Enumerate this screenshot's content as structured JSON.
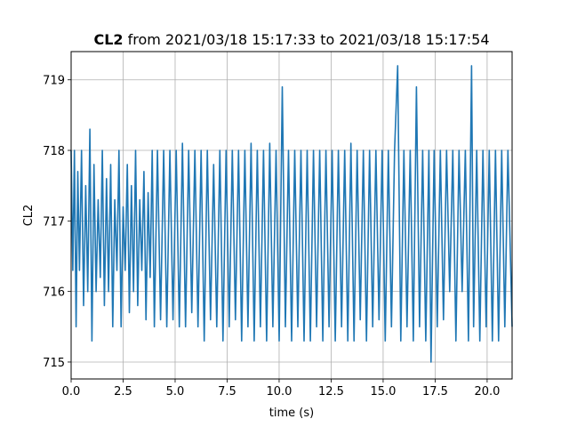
{
  "chart_data": {
    "type": "line",
    "title_bold": "CL2",
    "title_rest": " from 2021/03/18 15:17:33 to 2021/03/18 15:17:54",
    "xlabel": "time (s)",
    "ylabel": "CL2",
    "xlim": [
      0,
      21.2
    ],
    "ylim": [
      714.76,
      719.4
    ],
    "grid": true,
    "x_ticks": [
      0.0,
      2.5,
      5.0,
      7.5,
      10.0,
      12.5,
      15.0,
      17.5,
      20.0
    ],
    "x_tick_labels": [
      "0.0",
      "2.5",
      "5.0",
      "7.5",
      "10.0",
      "12.5",
      "15.0",
      "17.5",
      "20.0"
    ],
    "y_ticks": [
      715,
      716,
      717,
      718,
      719
    ],
    "y_tick_labels": [
      "715",
      "716",
      "717",
      "718",
      "719"
    ],
    "line_color": "#1f77b4",
    "series": [
      {
        "x": [
          0.0,
          0.08,
          0.16,
          0.24,
          0.32,
          0.4,
          0.5,
          0.6,
          0.7,
          0.8,
          0.9,
          1.0,
          1.1,
          1.2,
          1.3,
          1.4,
          1.5,
          1.6,
          1.7,
          1.8,
          1.9,
          2.0,
          2.1,
          2.2,
          2.3,
          2.4,
          2.5,
          2.6,
          2.7,
          2.8,
          2.9,
          3.0,
          3.1,
          3.2,
          3.3,
          3.4,
          3.5,
          3.6,
          3.7,
          3.8,
          3.9,
          4.0,
          4.15,
          4.3,
          4.45,
          4.6,
          4.75,
          4.9,
          5.05,
          5.2,
          5.35,
          5.5,
          5.65,
          5.8,
          5.95,
          6.1,
          6.25,
          6.4,
          6.55,
          6.7,
          6.85,
          7.0,
          7.15,
          7.3,
          7.45,
          7.6,
          7.75,
          7.9,
          8.05,
          8.2,
          8.35,
          8.5,
          8.65,
          8.8,
          8.95,
          9.1,
          9.25,
          9.4,
          9.55,
          9.7,
          9.85,
          10.0,
          10.15,
          10.3,
          10.45,
          10.6,
          10.75,
          10.9,
          11.05,
          11.2,
          11.35,
          11.5,
          11.65,
          11.8,
          11.95,
          12.1,
          12.25,
          12.4,
          12.55,
          12.7,
          12.85,
          13.0,
          13.15,
          13.3,
          13.45,
          13.6,
          13.75,
          13.9,
          14.05,
          14.2,
          14.35,
          14.5,
          14.65,
          14.8,
          14.95,
          15.1,
          15.25,
          15.4,
          15.55,
          15.7,
          15.85,
          16.0,
          16.15,
          16.3,
          16.45,
          16.6,
          16.75,
          16.9,
          17.05,
          17.2,
          17.3,
          17.45,
          17.6,
          17.75,
          17.9,
          18.05,
          18.2,
          18.35,
          18.5,
          18.65,
          18.8,
          18.95,
          19.1,
          19.25,
          19.35,
          19.5,
          19.65,
          19.8,
          19.95,
          20.1,
          20.25,
          20.4,
          20.55,
          20.7,
          20.85,
          21.0,
          21.2
        ],
        "y": [
          718.0,
          716.3,
          718.0,
          715.5,
          717.7,
          716.3,
          718.0,
          715.8,
          717.5,
          716.0,
          718.3,
          715.3,
          717.8,
          716.0,
          717.3,
          716.2,
          718.0,
          715.8,
          717.6,
          716.0,
          717.8,
          715.5,
          717.3,
          716.3,
          718.0,
          715.5,
          717.2,
          716.3,
          717.8,
          715.7,
          717.5,
          716.0,
          718.0,
          715.8,
          717.3,
          716.3,
          717.7,
          715.6,
          717.4,
          716.2,
          718.0,
          715.5,
          718.0,
          715.6,
          718.0,
          715.5,
          718.0,
          715.6,
          718.0,
          715.5,
          718.1,
          715.5,
          718.0,
          715.7,
          718.0,
          715.5,
          718.0,
          715.3,
          718.0,
          715.6,
          717.8,
          715.5,
          718.0,
          715.3,
          718.0,
          715.5,
          718.0,
          715.6,
          718.0,
          715.3,
          718.0,
          715.5,
          718.1,
          715.3,
          718.0,
          715.5,
          718.0,
          715.3,
          718.1,
          715.5,
          718.0,
          715.3,
          718.9,
          715.5,
          718.0,
          715.3,
          718.0,
          715.5,
          718.0,
          715.3,
          718.0,
          715.3,
          718.0,
          715.5,
          718.0,
          715.3,
          718.0,
          715.5,
          718.0,
          715.3,
          718.0,
          715.5,
          718.0,
          715.3,
          718.1,
          715.3,
          718.0,
          715.6,
          718.0,
          715.3,
          718.0,
          715.5,
          718.0,
          715.6,
          718.0,
          715.3,
          718.0,
          715.5,
          718.0,
          719.2,
          715.3,
          718.0,
          715.5,
          718.0,
          715.3,
          718.9,
          715.5,
          718.0,
          715.3,
          718.0,
          715.0,
          718.0,
          715.5,
          718.0,
          715.6,
          718.0,
          716.0,
          718.0,
          715.3,
          718.0,
          716.0,
          718.0,
          715.3,
          719.2,
          715.5,
          718.0,
          715.3,
          718.0,
          715.5,
          718.0,
          715.3,
          718.0,
          715.3,
          718.0,
          715.5,
          718.0,
          715.5
        ]
      }
    ]
  }
}
